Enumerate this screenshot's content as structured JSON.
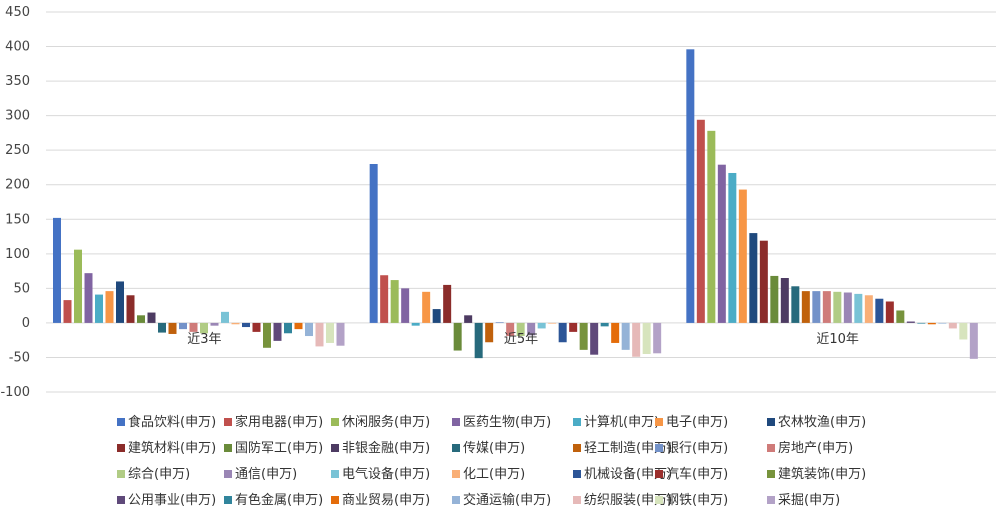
{
  "chart_data": {
    "type": "bar",
    "categories": [
      "近3年",
      "近5年",
      "近10年"
    ],
    "ylim": [
      -100,
      450
    ],
    "yticks": [
      -100,
      -50,
      0,
      50,
      100,
      150,
      200,
      250,
      300,
      350,
      400,
      450
    ],
    "grid": true,
    "legend_position": "bottom",
    "series": [
      {
        "name": "食品饮料(申万)",
        "color": "#4472C4",
        "values": [
          152,
          230,
          396
        ]
      },
      {
        "name": "家用电器(申万)",
        "color": "#C0504D",
        "values": [
          33,
          69,
          294
        ]
      },
      {
        "name": "休闲服务(申万)",
        "color": "#9BBB59",
        "values": [
          106,
          62,
          278
        ]
      },
      {
        "name": "医药生物(申万)",
        "color": "#8064A2",
        "values": [
          72,
          50,
          229
        ]
      },
      {
        "name": "计算机(申万)",
        "color": "#4BACC6",
        "values": [
          41,
          -4,
          217
        ]
      },
      {
        "name": "电子(申万)",
        "color": "#F79646",
        "values": [
          46,
          45,
          193
        ]
      },
      {
        "name": "农林牧渔(申万)",
        "color": "#1F497D",
        "values": [
          60,
          20,
          130
        ]
      },
      {
        "name": "建筑材料(申万)",
        "color": "#8B2C2A",
        "values": [
          40,
          55,
          119
        ]
      },
      {
        "name": "国防军工(申万)",
        "color": "#6A8B3A",
        "values": [
          11,
          -40,
          68
        ]
      },
      {
        "name": "非银金融(申万)",
        "color": "#4D3B62",
        "values": [
          15,
          11,
          65
        ]
      },
      {
        "name": "传媒(申万)",
        "color": "#276A7C",
        "values": [
          -14,
          -51,
          53
        ]
      },
      {
        "name": "轻工制造(申万)",
        "color": "#C0610C",
        "values": [
          -16,
          -28,
          46
        ]
      },
      {
        "name": "银行(申万)",
        "color": "#7392C9",
        "values": [
          -9,
          1,
          46
        ]
      },
      {
        "name": "房地产(申万)",
        "color": "#CF7B79",
        "values": [
          -13,
          -19,
          46
        ]
      },
      {
        "name": "综合(申万)",
        "color": "#B1CC85",
        "values": [
          -15,
          -19,
          45
        ]
      },
      {
        "name": "通信(申万)",
        "color": "#9A86B5",
        "values": [
          -4,
          -18,
          44
        ]
      },
      {
        "name": "电气设备(申万)",
        "color": "#79C3D6",
        "values": [
          16,
          -8,
          42
        ]
      },
      {
        "name": "化工(申万)",
        "color": "#F9AF77",
        "values": [
          -2,
          -1,
          40
        ]
      },
      {
        "name": "机械设备(申万)",
        "color": "#2C5597",
        "values": [
          -6,
          -28,
          35
        ]
      },
      {
        "name": "汽车(申万)",
        "color": "#9B2F2D",
        "values": [
          -13,
          -13,
          31
        ]
      },
      {
        "name": "建筑装饰(申万)",
        "color": "#77933C",
        "values": [
          -36,
          -39,
          18
        ]
      },
      {
        "name": "公用事业(申万)",
        "color": "#5F497A",
        "values": [
          -26,
          -46,
          2
        ]
      },
      {
        "name": "有色金属(申万)",
        "color": "#31859C",
        "values": [
          -15,
          -5,
          -1
        ]
      },
      {
        "name": "商业贸易(申万)",
        "color": "#E46C0A",
        "values": [
          -9,
          -29,
          -2
        ]
      },
      {
        "name": "交通运输(申万)",
        "color": "#95B3D7",
        "values": [
          -19,
          -39,
          -1
        ]
      },
      {
        "name": "纺织服装(申万)",
        "color": "#E6B9B8",
        "values": [
          -34,
          -49,
          -8
        ]
      },
      {
        "name": "钢铁(申万)",
        "color": "#D7E4BD",
        "values": [
          -29,
          -45,
          -24
        ]
      },
      {
        "name": "采掘(申万)",
        "color": "#B3A2C7",
        "values": [
          -33,
          -44,
          -52
        ]
      }
    ]
  }
}
